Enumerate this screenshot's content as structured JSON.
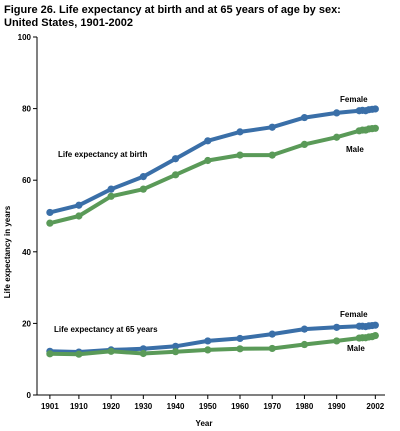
{
  "chart_data": {
    "type": "line",
    "title": "Figure 26. Life expectancy at birth and at 65 years of age by sex:",
    "subtitle": "United States, 1901-2002",
    "xlabel": "Year",
    "ylabel": "Life expectancy in years",
    "ylim": [
      0,
      100
    ],
    "yticks": [
      0,
      20,
      40,
      60,
      80,
      100
    ],
    "xticks": [
      1901,
      1910,
      1920,
      1930,
      1940,
      1950,
      1960,
      1970,
      1980,
      1990,
      2002
    ],
    "grid": false,
    "legend": "inline labels",
    "annotations": {
      "birth": "Life expectancy at birth",
      "age65": "Life expectancy at 65 years"
    },
    "series": [
      {
        "name": "Female",
        "group": "birth",
        "color": "#3a6fa8",
        "x": [
          1901,
          1910,
          1920,
          1930,
          1940,
          1950,
          1960,
          1970,
          1980,
          1990,
          1997,
          1998,
          1999,
          2000,
          2001,
          2002
        ],
        "y": [
          51,
          53,
          57.5,
          61,
          66,
          71,
          73.5,
          74.8,
          77.5,
          78.8,
          79.4,
          79.5,
          79.4,
          79.7,
          79.8,
          79.9
        ]
      },
      {
        "name": "Male",
        "group": "birth",
        "color": "#5a9a58",
        "x": [
          1901,
          1910,
          1920,
          1930,
          1940,
          1950,
          1960,
          1970,
          1980,
          1990,
          1997,
          1998,
          1999,
          2000,
          2001,
          2002
        ],
        "y": [
          48,
          50,
          55.5,
          57.5,
          61.5,
          65.5,
          67,
          67,
          70,
          72,
          73.8,
          74,
          74,
          74.3,
          74.4,
          74.5
        ]
      },
      {
        "name": "Female",
        "group": "age65",
        "color": "#3a6fa8",
        "x": [
          1901,
          1910,
          1920,
          1930,
          1940,
          1950,
          1960,
          1970,
          1980,
          1990,
          1997,
          1998,
          1999,
          2000,
          2001,
          2002
        ],
        "y": [
          12.2,
          12.0,
          12.6,
          12.9,
          13.6,
          15.1,
          15.8,
          17.0,
          18.4,
          18.9,
          19.2,
          19.2,
          19.1,
          19.3,
          19.4,
          19.5
        ]
      },
      {
        "name": "Male",
        "group": "age65",
        "color": "#5a9a58",
        "x": [
          1901,
          1910,
          1920,
          1930,
          1940,
          1950,
          1960,
          1970,
          1980,
          1990,
          1997,
          1998,
          1999,
          2000,
          2001,
          2002
        ],
        "y": [
          11.5,
          11.4,
          12.2,
          11.6,
          12.1,
          12.6,
          12.9,
          13.0,
          14.1,
          15.1,
          15.9,
          16.0,
          16.0,
          16.2,
          16.3,
          16.6
        ]
      }
    ]
  }
}
